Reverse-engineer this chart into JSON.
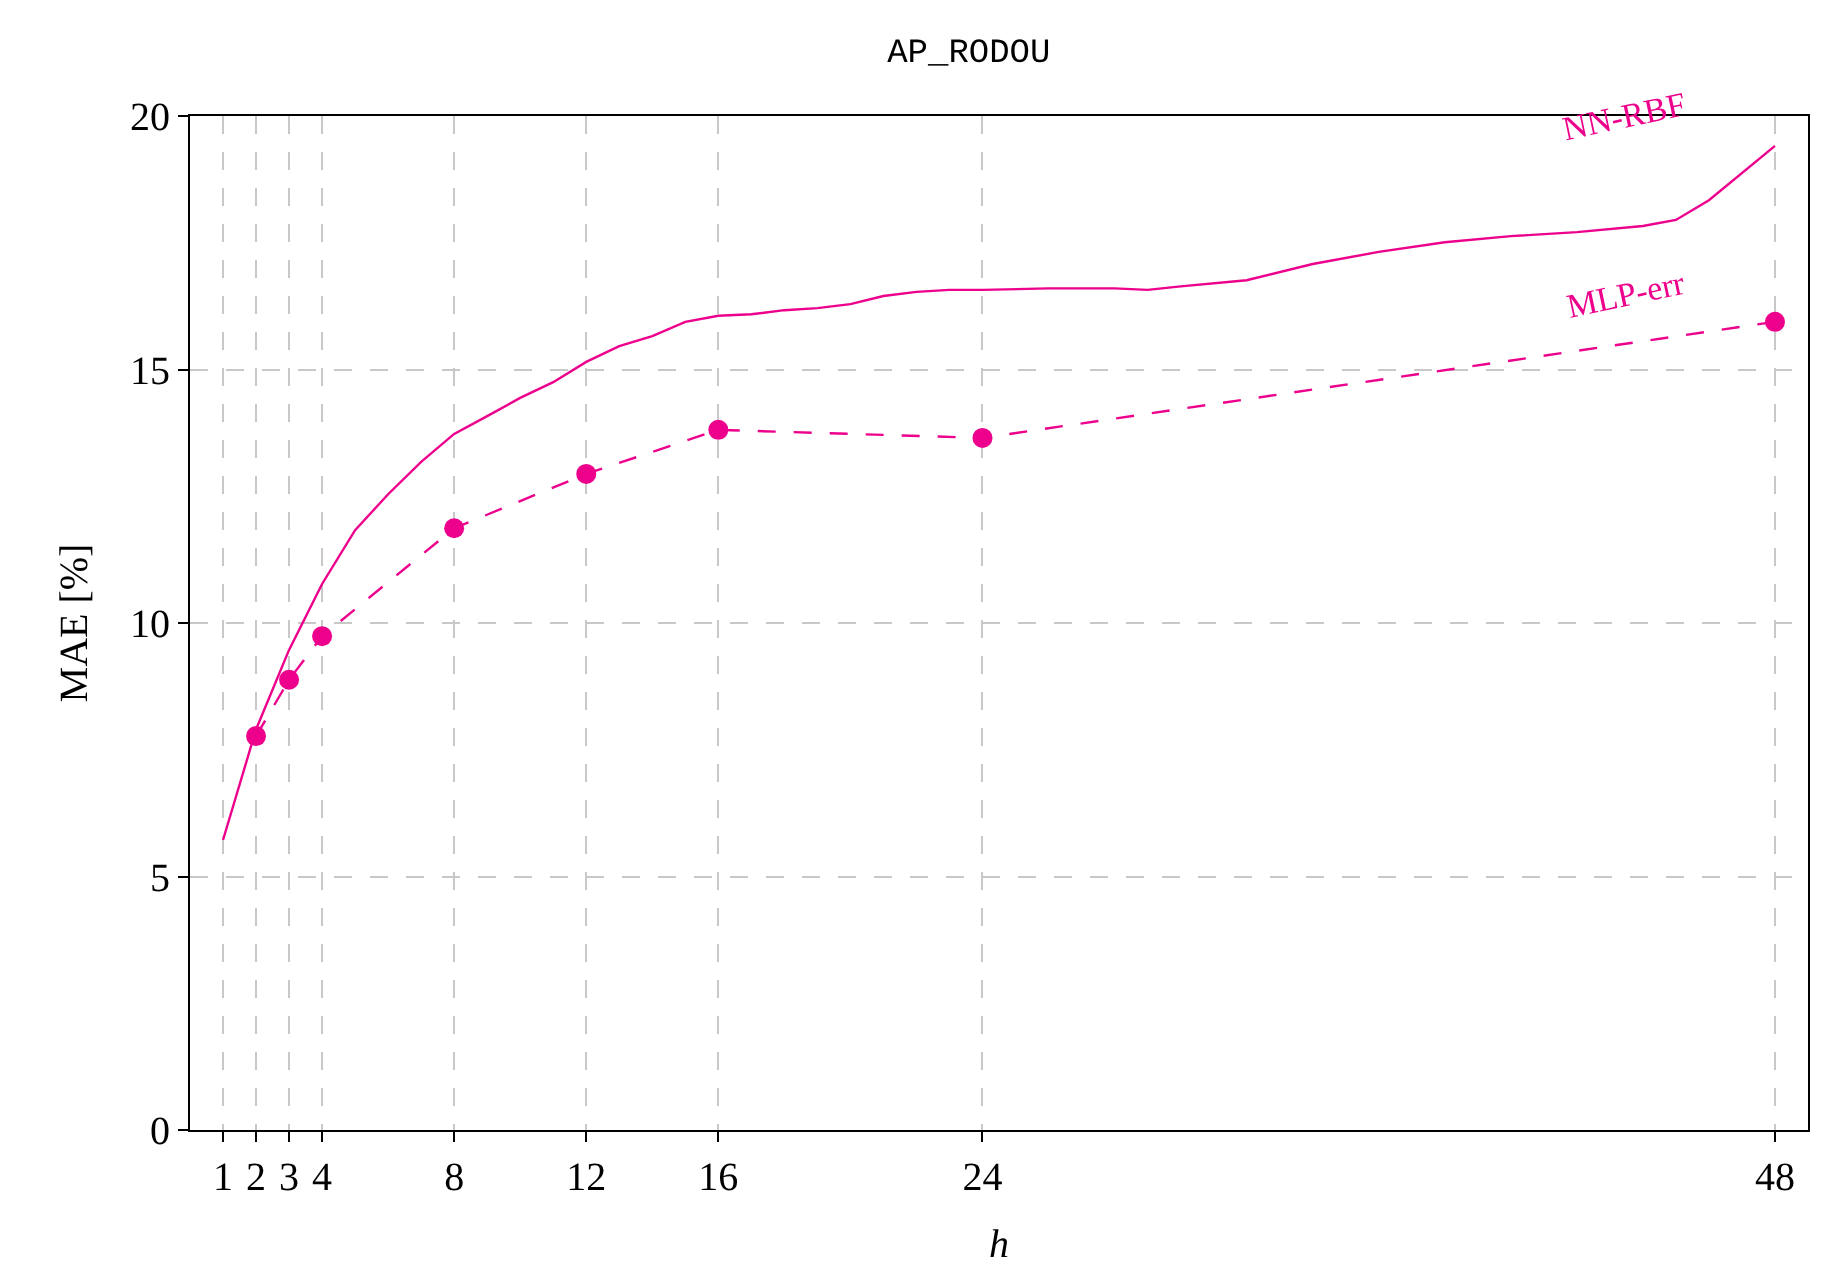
{
  "chart_data": {
    "type": "line",
    "title": "AP_RODOU",
    "xlabel": "h",
    "ylabel": "MAE [%]",
    "xlim": [
      0,
      49
    ],
    "xticks": [
      1,
      2,
      3,
      4,
      8,
      12,
      16,
      24,
      48
    ],
    "ylim": [
      0,
      20
    ],
    "yticks": [
      0,
      5,
      10,
      15,
      20
    ],
    "grid": true,
    "legend": false,
    "series": [
      {
        "name": "NN-RBF",
        "color": "#ec008c",
        "line_style": "solid",
        "marker": "none",
        "x": [
          1,
          2,
          3,
          4,
          5,
          6,
          7,
          8,
          9,
          10,
          11,
          12,
          13,
          14,
          15,
          16,
          17,
          18,
          19,
          20,
          21,
          22,
          23,
          24,
          26,
          28,
          29,
          30,
          32,
          34,
          36,
          38,
          40,
          42,
          44,
          45,
          46,
          48
        ],
        "values": [
          5.72,
          7.9,
          9.47,
          10.77,
          11.83,
          12.54,
          13.18,
          13.73,
          14.08,
          14.44,
          14.75,
          15.15,
          15.46,
          15.66,
          15.94,
          16.06,
          16.09,
          16.17,
          16.21,
          16.29,
          16.45,
          16.53,
          16.57,
          16.57,
          16.6,
          16.6,
          16.57,
          16.64,
          16.76,
          17.08,
          17.32,
          17.51,
          17.63,
          17.71,
          17.83,
          17.95,
          18.34,
          19.41
        ]
      },
      {
        "name": "MLP-err",
        "color": "#ec008c",
        "line_style": "dashed",
        "marker": "circle",
        "x": [
          2,
          3,
          4,
          8,
          12,
          16,
          24,
          48
        ],
        "values": [
          7.77,
          8.88,
          9.74,
          11.87,
          12.94,
          13.81,
          13.65,
          15.94
        ]
      }
    ]
  }
}
